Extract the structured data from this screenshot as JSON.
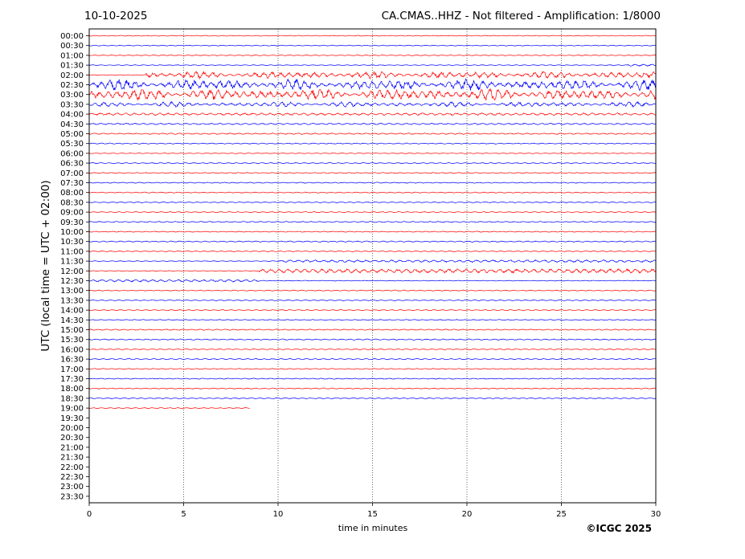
{
  "header": {
    "date": "10-10-2025",
    "station_info": "CA.CMAS..HHZ - Not filtered - Amplification: 1/8000"
  },
  "footer": {
    "copyright": "©ICGC 2025"
  },
  "colors": {
    "trace_a": "#ff0000",
    "trace_b": "#0000ff",
    "grid": "#000000",
    "background": "#ffffff"
  },
  "chart_data": {
    "type": "line",
    "title": "CA.CMAS..HHZ - Not filtered - Amplification: 1/8000",
    "xlabel": "time in minutes",
    "ylabel": "UTC (local time = UTC + 02:00)",
    "xlim": [
      0,
      30
    ],
    "x_ticks": [
      "0",
      "5",
      "10",
      "15",
      "20",
      "25",
      "30"
    ],
    "grid": "vertical dotted lines at 5-minute intervals",
    "row_labels": [
      "00:00",
      "00:30",
      "01:00",
      "01:30",
      "02:00",
      "02:30",
      "03:00",
      "03:30",
      "04:00",
      "04:30",
      "05:00",
      "05:30",
      "06:00",
      "06:30",
      "07:00",
      "07:30",
      "08:00",
      "08:30",
      "09:00",
      "09:30",
      "10:00",
      "10:30",
      "11:00",
      "11:30",
      "12:00",
      "12:30",
      "13:00",
      "13:30",
      "14:00",
      "14:30",
      "15:00",
      "15:30",
      "16:00",
      "16:30",
      "17:00",
      "17:30",
      "18:00",
      "18:30",
      "19:00",
      "19:30",
      "20:00",
      "20:30",
      "21:00",
      "21:30",
      "22:00",
      "22:30",
      "23:00",
      "23:30"
    ],
    "trace_colors_alternating": [
      "#ff0000",
      "#0000ff"
    ],
    "last_trace": {
      "row": "19:00",
      "end_minute": 8.5
    },
    "traces": [
      {
        "row": "00:00",
        "activity": 0.06
      },
      {
        "row": "00:30",
        "activity": 0.06
      },
      {
        "row": "01:00",
        "activity": 0.06
      },
      {
        "row": "01:30",
        "activity": 0.25,
        "burst": [
          28.5,
          30
        ]
      },
      {
        "row": "02:00",
        "activity": 1.0,
        "burst": [
          3,
          30
        ]
      },
      {
        "row": "02:30",
        "activity": 1.5,
        "burst": [
          0,
          30
        ]
      },
      {
        "row": "03:00",
        "activity": 1.6,
        "burst": [
          0,
          30
        ]
      },
      {
        "row": "03:30",
        "activity": 0.7,
        "burst": [
          0,
          30
        ]
      },
      {
        "row": "04:00",
        "activity": 0.25
      },
      {
        "row": "04:30",
        "activity": 0.15
      },
      {
        "row": "05:00",
        "activity": 0.12
      },
      {
        "row": "05:30",
        "activity": 0.08
      },
      {
        "row": "06:00",
        "activity": 0.1,
        "burst": [
          19.7,
          20.2
        ]
      },
      {
        "row": "06:30",
        "activity": 0.08
      },
      {
        "row": "07:00",
        "activity": 0.08
      },
      {
        "row": "07:30",
        "activity": 0.08
      },
      {
        "row": "08:00",
        "activity": 0.08
      },
      {
        "row": "08:30",
        "activity": 0.08
      },
      {
        "row": "09:00",
        "activity": 0.08
      },
      {
        "row": "09:30",
        "activity": 0.1
      },
      {
        "row": "10:00",
        "activity": 0.08
      },
      {
        "row": "10:30",
        "activity": 0.1
      },
      {
        "row": "11:00",
        "activity": 0.08
      },
      {
        "row": "11:30",
        "activity": 0.3,
        "burst": [
          10,
          30
        ]
      },
      {
        "row": "12:00",
        "activity": 0.5,
        "burst": [
          9,
          30
        ]
      },
      {
        "row": "12:30",
        "activity": 0.3,
        "burst": [
          0,
          9
        ]
      },
      {
        "row": "13:00",
        "activity": 0.08
      },
      {
        "row": "13:30",
        "activity": 0.08
      },
      {
        "row": "14:00",
        "activity": 0.08
      },
      {
        "row": "14:30",
        "activity": 0.08
      },
      {
        "row": "15:00",
        "activity": 0.1
      },
      {
        "row": "15:30",
        "activity": 0.1
      },
      {
        "row": "16:00",
        "activity": 0.08
      },
      {
        "row": "16:30",
        "activity": 0.1
      },
      {
        "row": "17:00",
        "activity": 0.08
      },
      {
        "row": "17:30",
        "activity": 0.08
      },
      {
        "row": "18:00",
        "activity": 0.08
      },
      {
        "row": "18:30",
        "activity": 0.08
      },
      {
        "row": "19:00",
        "activity": 0.08
      }
    ]
  }
}
